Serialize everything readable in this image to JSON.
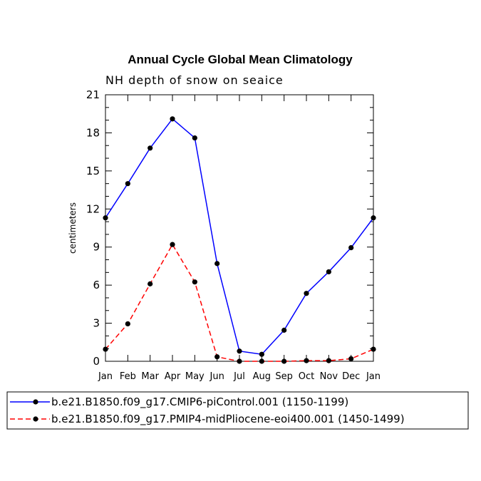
{
  "chart_data": {
    "type": "line",
    "title": "Annual Cycle Global Mean Climatology",
    "subtitle": "NH depth of snow on seaice",
    "xlabel": "",
    "ylabel": "centimeters",
    "categories": [
      "Jan",
      "Feb",
      "Mar",
      "Apr",
      "May",
      "Jun",
      "Jul",
      "Aug",
      "Sep",
      "Oct",
      "Nov",
      "Dec",
      "Jan"
    ],
    "ylim": [
      0,
      21
    ],
    "yticks": [
      0,
      3,
      6,
      9,
      12,
      15,
      18,
      21
    ],
    "grid": false,
    "legend_position": "bottom",
    "series": [
      {
        "name": "b.e21.B1850.f09_g17.CMIP6-piControl.001 (1150-1199)",
        "color": "#0000ff",
        "dash": "solid",
        "values": [
          11.3,
          14.0,
          16.8,
          19.1,
          17.6,
          7.7,
          0.8,
          0.55,
          2.45,
          5.35,
          7.05,
          8.95,
          11.3
        ]
      },
      {
        "name": "b.e21.B1850.f09_g17.PMIP4-midPliocene-eoi400.001 (1450-1499)",
        "color": "#ff0000",
        "dash": "dashed",
        "values": [
          0.95,
          2.95,
          6.1,
          9.2,
          6.25,
          0.35,
          0.0,
          0.0,
          0.0,
          0.05,
          0.05,
          0.2,
          0.95
        ]
      }
    ]
  }
}
